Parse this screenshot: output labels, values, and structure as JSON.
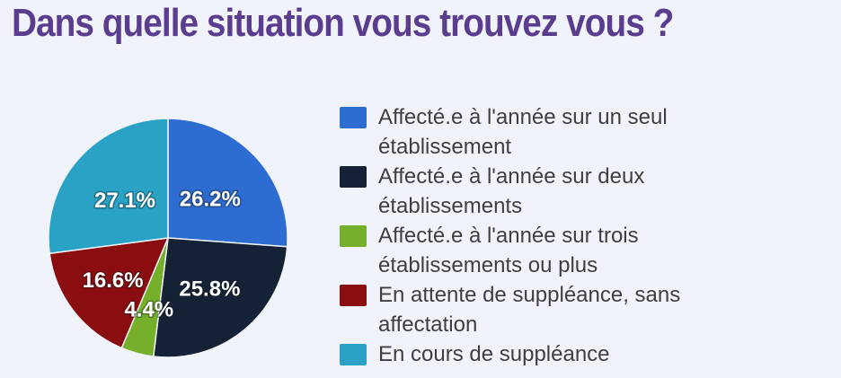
{
  "page": {
    "background": "#f0f4fa",
    "title": "Dans quelle situation vous trouvez vous ?",
    "title_color": "#5b3d90"
  },
  "chart_data": {
    "type": "pie",
    "title": "Dans quelle situation vous trouvez vous ?",
    "direction": "clockwise",
    "start_angle_deg": 0,
    "legend_position": "right",
    "value_label_color": "#ffffff",
    "legend_text_color": "#3f3f3f",
    "slices": [
      {
        "label": "Affecté.e à l'année sur un seul établissement",
        "value": 26.2,
        "value_label": "26.2%",
        "color": "#2d6cd0"
      },
      {
        "label": "Affecté.e à l'année sur deux établissements",
        "value": 25.8,
        "value_label": "25.8%",
        "color": "#152236"
      },
      {
        "label": "Affecté.e à l'année sur trois établissements ou plus",
        "value": 4.4,
        "value_label": "4.4%",
        "color": "#76b02a"
      },
      {
        "label": "En attente de suppléance, sans affectation",
        "value": 16.6,
        "value_label": "16.6%",
        "color": "#8a0d10"
      },
      {
        "label": "En cours de suppléance",
        "value": 27.1,
        "value_label": "27.1%",
        "color": "#29a2c6"
      }
    ]
  }
}
